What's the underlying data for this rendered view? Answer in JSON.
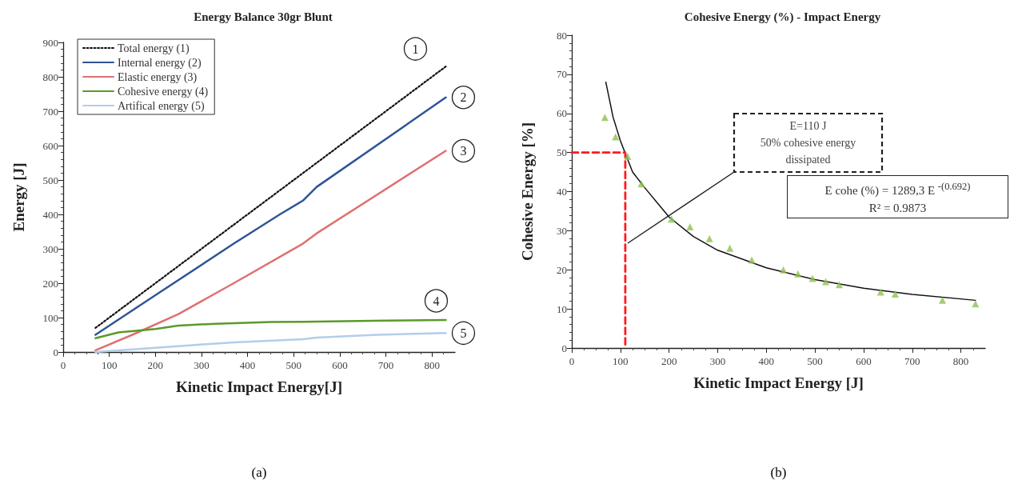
{
  "chart_data": [
    {
      "type": "line",
      "title": "Energy Balance 30gr Blunt",
      "xlabel": "Kinetic Impact Energy[J]",
      "ylabel": "Energy [J]",
      "xlim": [
        0,
        850
      ],
      "xticks": [
        0,
        100,
        200,
        300,
        400,
        500,
        600,
        700,
        800
      ],
      "ylim": [
        0,
        900
      ],
      "yticks": [
        0,
        100,
        200,
        300,
        400,
        500,
        600,
        700,
        800,
        900
      ],
      "legend": "top left",
      "marker": "none",
      "series": [
        {
          "name": "Total energy (1)",
          "color": "#111111",
          "line_style": "dotted",
          "x": [
            70,
            830
          ],
          "values": [
            70,
            830
          ]
        },
        {
          "name": "Internal energy (2)",
          "color": "#2f5597",
          "x": [
            70,
            200,
            370,
            470,
            520,
            550,
            830
          ],
          "values": [
            50,
            165,
            315,
            400,
            440,
            480,
            740
          ]
        },
        {
          "name": "Elastic energy (3)",
          "color": "#e07070",
          "x": [
            70,
            150,
            250,
            370,
            520,
            550,
            830
          ],
          "values": [
            5,
            50,
            110,
            200,
            315,
            345,
            585
          ]
        },
        {
          "name": "Cohesive energy (4)",
          "color": "#5a9a2a",
          "x": [
            70,
            120,
            200,
            250,
            330,
            450,
            520,
            700,
            830
          ],
          "values": [
            40,
            57,
            67,
            77,
            82,
            87,
            88,
            91,
            93
          ]
        },
        {
          "name": "Artifical energy (5)",
          "color": "#b4cdea",
          "x": [
            70,
            200,
            280,
            370,
            520,
            550,
            680,
            830
          ],
          "values": [
            0,
            12,
            20,
            28,
            37,
            42,
            50,
            55
          ]
        }
      ],
      "annotations": [
        "1",
        "2",
        "3",
        "4",
        "5",
        "(a)"
      ]
    },
    {
      "type": "scatter",
      "title": "Cohesive Energy (%) - Impact Energy",
      "xlabel": "Kinetic Impact Energy [J]",
      "ylabel": "Cohesive Energy [%]",
      "xlim": [
        0,
        850
      ],
      "xticks": [
        0,
        100,
        200,
        300,
        400,
        500,
        600,
        700,
        800
      ],
      "ylim": [
        0,
        80
      ],
      "yticks": [
        0,
        10,
        20,
        30,
        40,
        50,
        60,
        70,
        80
      ],
      "marker": "triangle",
      "series": [
        {
          "color": "#8dc053",
          "x": [
            68,
            90,
            115,
            143,
            205,
            243,
            283,
            325,
            370,
            435,
            465,
            495,
            522,
            550,
            635,
            665,
            762,
            830
          ],
          "values": [
            59,
            54,
            49,
            42,
            33,
            31,
            28,
            25.5,
            22.5,
            20,
            19,
            17.8,
            17,
            16.2,
            14.3,
            13.8,
            12.2,
            11.3
          ]
        },
        {
          "type": "line",
          "marker": "none",
          "color": "#111111",
          "x": [
            70,
            85,
            100,
            125,
            150,
            200,
            250,
            300,
            400,
            500,
            600,
            700,
            830
          ],
          "values": [
            68,
            59,
            53,
            45,
            41,
            33.5,
            28.5,
            25,
            20.5,
            17.5,
            15.3,
            13.7,
            12.2
          ]
        },
        {
          "type": "line",
          "marker": "none",
          "color": "#ff1a1a",
          "line_style": "dashed",
          "x": [
            0,
            110,
            110
          ],
          "values": [
            50,
            50,
            0
          ]
        }
      ],
      "annotations": [
        "E=110 J\n50% cohesive energy\ndissipated",
        "E cohe (%) = 1289,3 E $^{-(0.692)}$\nR² = 0.9873",
        "(b)"
      ]
    }
  ]
}
